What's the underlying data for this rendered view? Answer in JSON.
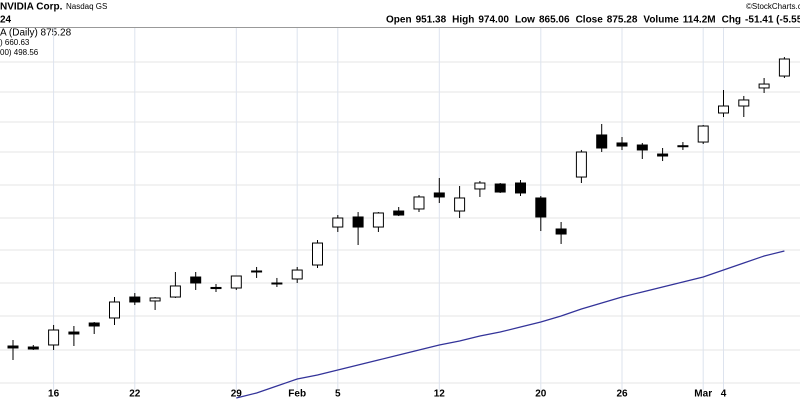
{
  "chart_data": {
    "type": "candlestick",
    "title": "NVIDIA Corp.",
    "exchange": "Nasdaq GS",
    "source": "©StockCharts.c",
    "date": "24",
    "quote": [
      {
        "label": "Open",
        "value": "951.38"
      },
      {
        "label": "High",
        "value": "974.00"
      },
      {
        "label": "Low",
        "value": "865.06"
      },
      {
        "label": "Close",
        "value": "875.28"
      },
      {
        "label": "Volume",
        "value": "114.2M"
      },
      {
        "label": "Chg",
        "value": "-51.41 (-5.55%"
      }
    ],
    "legend": [
      {
        "text": "A (Daily) 875.28",
        "color": "#000000"
      },
      {
        "text": ") 660.63",
        "color": "#333399"
      },
      {
        "text": "00) 498.56",
        "color": "#cc0000"
      }
    ],
    "categories": [
      null,
      null,
      "16",
      null,
      null,
      null,
      "22",
      null,
      null,
      null,
      null,
      "29",
      null,
      null,
      "Feb",
      null,
      "5",
      null,
      null,
      null,
      null,
      "12",
      null,
      null,
      null,
      null,
      "20",
      null,
      null,
      null,
      "26",
      null,
      null,
      null,
      "Mar",
      "4",
      null,
      null,
      null
    ],
    "open": [
      548.8,
      547.5,
      550.1,
      566.6,
      578.1,
      584.5,
      611.2,
      606.2,
      611.2,
      636.7,
      623.4,
      622.7,
      644.4,
      629.1,
      634.2,
      652.0,
      700.4,
      713.2,
      700.4,
      720.8,
      723.4,
      743.8,
      720.8,
      748.9,
      755.2,
      756.5,
      737.4,
      697.9,
      764.1,
      817.7,
      807.5,
      804.9,
      793.4,
      804.0,
      808.7,
      845.7,
      854.6,
      877.6,
      892.8
    ],
    "high": [
      556.5,
      550.1,
      575.6,
      574.3,
      579.4,
      611.2,
      616.3,
      611.2,
      643.1,
      643.1,
      627.8,
      638.0,
      649.5,
      635.5,
      649.5,
      683.9,
      715.7,
      719.5,
      719.5,
      725.9,
      741.2,
      762.9,
      752.7,
      759.0,
      756.5,
      760.3,
      739.9,
      706.8,
      798.6,
      831.7,
      815.1,
      807.5,
      801.1,
      808.7,
      830.4,
      875.0,
      867.4,
      890.3,
      917.0
    ],
    "low": [
      531.0,
      543.7,
      543.7,
      548.8,
      564.1,
      575.6,
      601.0,
      594.7,
      610.0,
      620.2,
      617.6,
      620.2,
      635.5,
      624.0,
      629.1,
      648.2,
      694.1,
      677.5,
      694.1,
      714.4,
      719.5,
      731.0,
      711.9,
      738.7,
      743.8,
      739.9,
      695.3,
      678.8,
      756.5,
      796.0,
      798.6,
      787.1,
      784.5,
      798.6,
      806.2,
      840.6,
      840.6,
      871.2,
      890.3
    ],
    "close": [
      546.3,
      545.0,
      569.2,
      564.1,
      574.3,
      604.9,
      604.9,
      610.0,
      625.3,
      629.1,
      622.0,
      638.0,
      643.8,
      628.4,
      645.6,
      680.0,
      711.9,
      700.4,
      718.3,
      715.7,
      738.7,
      738.7,
      737.4,
      756.5,
      745.0,
      743.8,
      713.2,
      691.5,
      796.0,
      801.1,
      803.6,
      798.6,
      790.9,
      803.6,
      829.1,
      854.6,
      862.3,
      882.6,
      914.5
    ],
    "ma": {
      "color": "#333399",
      "values": [
        null,
        null,
        null,
        null,
        null,
        null,
        null,
        null,
        null,
        null,
        null,
        482.5,
        488.9,
        497.8,
        506.7,
        511.9,
        518.2,
        524.6,
        531.0,
        537.3,
        543.7,
        550.1,
        555.2,
        561.5,
        566.6,
        573.0,
        579.4,
        587.0,
        595.9,
        603.6,
        611.2,
        617.6,
        624.0,
        630.4,
        636.7,
        645.6,
        654.6,
        663.5,
        669.9
      ]
    },
    "ylim": [
      480,
      954
    ]
  }
}
